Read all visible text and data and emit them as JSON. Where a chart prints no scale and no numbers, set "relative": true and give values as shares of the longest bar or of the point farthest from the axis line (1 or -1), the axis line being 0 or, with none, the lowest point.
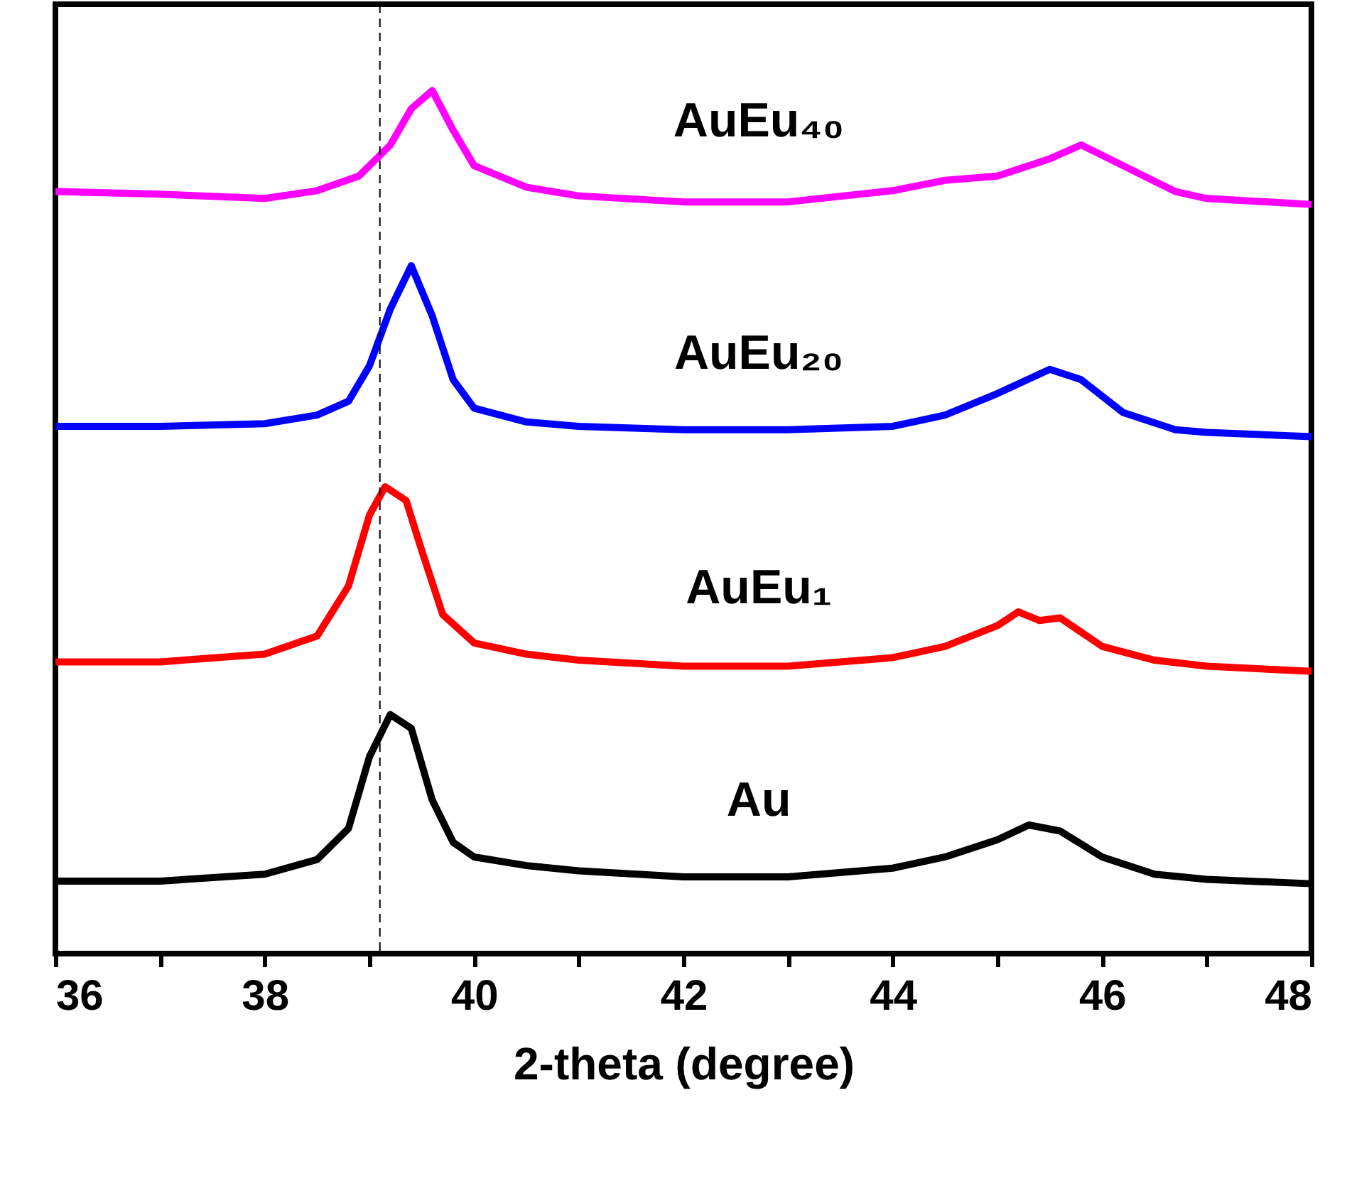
{
  "chart_data": {
    "type": "line",
    "xlabel": "2-theta (degree)",
    "relative": true,
    "grid": false,
    "marker": "none",
    "line_style": "solid",
    "xlim": [
      36,
      48
    ],
    "xticks": [
      36,
      {
        "value": 37,
        "label": null
      },
      38,
      {
        "value": 39,
        "label": null
      },
      40,
      {
        "value": 41,
        "label": null
      },
      42,
      {
        "value": 43,
        "label": null
      },
      44,
      {
        "value": 45,
        "label": null
      },
      46,
      {
        "value": 47,
        "label": null
      },
      48
    ],
    "ref_lines": [
      {
        "axis": "x",
        "value": 39.1,
        "color": "#000000",
        "line_style": "dashed"
      }
    ],
    "series": [
      {
        "name": "Au",
        "color": "#000000",
        "x": [
          36,
          37,
          38,
          38.5,
          38.8,
          39.0,
          39.2,
          39.4,
          39.6,
          39.8,
          40,
          40.5,
          41,
          42,
          43,
          44,
          44.5,
          45,
          45.3,
          45.6,
          46,
          46.5,
          47,
          48
        ],
        "values": [
          0.084,
          0.084,
          0.092,
          0.109,
          0.145,
          0.228,
          0.277,
          0.261,
          0.178,
          0.129,
          0.112,
          0.102,
          0.096,
          0.089,
          0.089,
          0.099,
          0.112,
          0.132,
          0.149,
          0.142,
          0.112,
          0.092,
          0.086,
          0.081
        ]
      },
      {
        "name": "AuEu₁",
        "color": "#ff0000",
        "x": [
          36,
          37,
          38,
          38.5,
          38.8,
          39.0,
          39.15,
          39.35,
          39.5,
          39.7,
          40,
          40.5,
          41,
          42,
          43,
          44,
          44.5,
          45,
          45.2,
          45.4,
          45.6,
          46,
          46.5,
          47,
          48
        ],
        "values": [
          0.338,
          0.338,
          0.347,
          0.368,
          0.426,
          0.508,
          0.541,
          0.525,
          0.467,
          0.393,
          0.36,
          0.347,
          0.34,
          0.333,
          0.333,
          0.343,
          0.356,
          0.38,
          0.396,
          0.386,
          0.389,
          0.356,
          0.34,
          0.333,
          0.327
        ]
      },
      {
        "name": "AuEu₂₀",
        "color": "#0000ff",
        "x": [
          36,
          37,
          38,
          38.5,
          38.8,
          39.0,
          39.2,
          39.4,
          39.6,
          39.8,
          40,
          40.5,
          41,
          42,
          43,
          44,
          44.5,
          45,
          45.5,
          45.8,
          46.2,
          46.7,
          47,
          48
        ],
        "values": [
          0.611,
          0.611,
          0.614,
          0.624,
          0.64,
          0.681,
          0.747,
          0.797,
          0.739,
          0.665,
          0.632,
          0.616,
          0.611,
          0.607,
          0.607,
          0.611,
          0.624,
          0.649,
          0.677,
          0.665,
          0.627,
          0.607,
          0.604,
          0.599
        ]
      },
      {
        "name": "AuEu₄₀",
        "color": "#ff00ff",
        "x": [
          36,
          37,
          38,
          38.5,
          38.9,
          39.2,
          39.4,
          39.6,
          39.8,
          40,
          40.5,
          41,
          42,
          43,
          44,
          44.5,
          45,
          45.5,
          45.8,
          46.2,
          46.7,
          47,
          48
        ],
        "values": [
          0.883,
          0.88,
          0.875,
          0.884,
          0.901,
          0.937,
          0.979,
          1.0,
          0.954,
          0.913,
          0.888,
          0.878,
          0.871,
          0.871,
          0.884,
          0.896,
          0.901,
          0.921,
          0.937,
          0.913,
          0.883,
          0.875,
          0.868
        ]
      }
    ]
  }
}
